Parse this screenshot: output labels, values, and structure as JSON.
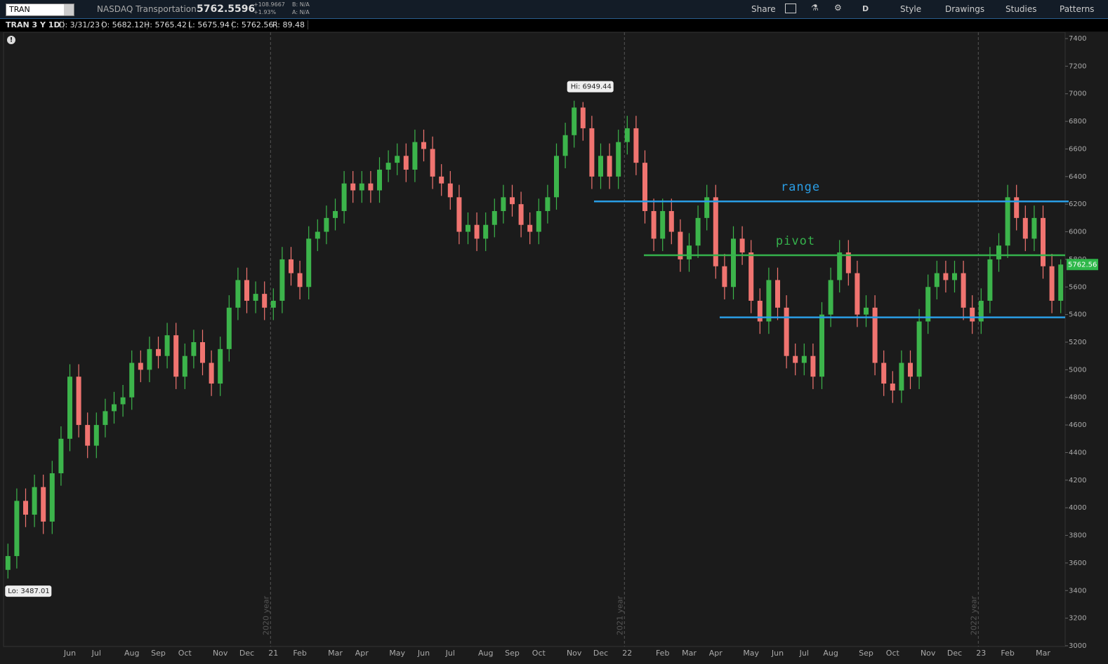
{
  "toolbar": {
    "symbol": "TRAN",
    "name": "NASDAQ Transportation",
    "last": "5762.5596",
    "change": "+108.9667",
    "change_pct": "+1.93%",
    "bid": "B: N/A",
    "ask": "A: N/A",
    "buttons": [
      "Share",
      "D",
      "Style",
      "Drawings",
      "Studies",
      "Patterns"
    ]
  },
  "info_bar": [
    "TRAN 3 Y 1D",
    "D: 3/31/23",
    "O: 5682.12",
    "H: 5765.42",
    "L: 5675.94",
    "C: 5762.56",
    "R: 89.48"
  ],
  "chart_data": {
    "type": "candlestick",
    "up_color": "#3cb44b",
    "down_color": "#f07470",
    "categories": [
      null,
      null,
      null,
      null,
      null,
      null,
      null,
      "Jun",
      null,
      null,
      "Jul",
      null,
      null,
      null,
      "Aug",
      null,
      null,
      "Sep",
      null,
      null,
      "Oct",
      null,
      null,
      null,
      "Nov",
      null,
      null,
      "Dec",
      null,
      null,
      "21",
      null,
      null,
      "Feb",
      null,
      null,
      null,
      "Mar",
      null,
      null,
      "Apr",
      null,
      null,
      null,
      "May",
      null,
      null,
      "Jun",
      null,
      null,
      "Jul",
      null,
      null,
      null,
      "Aug",
      null,
      null,
      "Sep",
      null,
      null,
      "Oct",
      null,
      null,
      null,
      "Nov",
      null,
      null,
      "Dec",
      null,
      null,
      "22",
      null,
      null,
      null,
      "Feb",
      null,
      null,
      "Mar",
      null,
      null,
      "Apr",
      null,
      null,
      null,
      "May",
      null,
      null,
      "Jun",
      null,
      null,
      "Jul",
      null,
      null,
      "Aug",
      null,
      null,
      null,
      "Sep",
      null,
      null,
      "Oct",
      null,
      null,
      null,
      "Nov",
      null,
      null,
      "Dec",
      null,
      null,
      "23",
      null,
      null,
      "Feb",
      null,
      null,
      null,
      "Mar",
      null,
      null
    ],
    "open": [
      3550,
      3650,
      4050,
      3950,
      4150,
      3900,
      4250,
      4500,
      4950,
      4600,
      4450,
      4600,
      4700,
      4750,
      4800,
      5050,
      5000,
      5150,
      5100,
      5250,
      4950,
      5100,
      5200,
      5050,
      4900,
      5150,
      5450,
      5650,
      5500,
      5550,
      5450,
      5500,
      5800,
      5700,
      5600,
      5950,
      6000,
      6100,
      6150,
      6350,
      6300,
      6350,
      6300,
      6450,
      6500,
      6550,
      6450,
      6650,
      6600,
      6400,
      6350,
      6250,
      6000,
      6050,
      5950,
      6050,
      6150,
      6250,
      6200,
      6050,
      6000,
      6150,
      6250,
      6550,
      6700,
      6900,
      6750,
      6400,
      6550,
      6400,
      6650,
      6750,
      6500,
      6150,
      5950,
      6150,
      6000,
      5800,
      5900,
      6100,
      6250,
      5750,
      5600,
      5950,
      5850,
      5500,
      5350,
      5650,
      5450,
      5100,
      5050,
      5100,
      4950,
      5400,
      5650,
      5850,
      5700,
      5400,
      5450,
      5050,
      4900,
      4850,
      5050,
      4950,
      5350,
      5600,
      5700,
      5650,
      5700,
      5450,
      5350,
      5500,
      5800,
      5900,
      6250,
      6100,
      5950,
      6100,
      5750,
      5500
    ],
    "high": [
      3740,
      4140,
      4140,
      4240,
      4240,
      4340,
      4590,
      5040,
      5040,
      4690,
      4690,
      4790,
      4840,
      4890,
      5140,
      5140,
      5240,
      5240,
      5340,
      5340,
      5190,
      5290,
      5290,
      5140,
      5240,
      5540,
      5740,
      5740,
      5640,
      5640,
      5590,
      5890,
      5890,
      5790,
      6040,
      6090,
      6190,
      6240,
      6440,
      6440,
      6440,
      6440,
      6540,
      6590,
      6640,
      6640,
      6740,
      6740,
      6690,
      6490,
      6440,
      6340,
      6140,
      6140,
      6140,
      6240,
      6340,
      6340,
      6290,
      6140,
      6240,
      6340,
      6640,
      6790,
      6949.44,
      6940,
      6840,
      6640,
      6640,
      6740,
      6840,
      6840,
      6590,
      6240,
      6240,
      6240,
      6090,
      5990,
      6190,
      6340,
      6340,
      5840,
      6040,
      6040,
      5940,
      5590,
      5740,
      5740,
      5540,
      5190,
      5190,
      5190,
      5490,
      5740,
      5940,
      5940,
      5790,
      5540,
      5540,
      5140,
      4990,
      5140,
      5140,
      5440,
      5690,
      5790,
      5790,
      5790,
      5790,
      5540,
      5590,
      5890,
      5990,
      6340,
      6340,
      6190,
      6190,
      6190,
      5840,
      5800
    ],
    "low": [
      3487.01,
      3560,
      3860,
      3860,
      3810,
      3810,
      4160,
      4410,
      4510,
      4360,
      4360,
      4510,
      4610,
      4660,
      4710,
      4910,
      4910,
      5010,
      5010,
      4860,
      4860,
      5010,
      4960,
      4810,
      4810,
      5060,
      5360,
      5410,
      5410,
      5360,
      5360,
      5410,
      5610,
      5510,
      5510,
      5860,
      5910,
      6010,
      6060,
      6210,
      6210,
      6210,
      6210,
      6360,
      6410,
      6360,
      6360,
      6510,
      6310,
      6260,
      6160,
      5910,
      5910,
      5860,
      5860,
      5960,
      6060,
      6110,
      5960,
      5910,
      5910,
      6060,
      6160,
      6460,
      6610,
      6660,
      6310,
      6310,
      6310,
      6310,
      6560,
      6410,
      6060,
      5860,
      5860,
      5910,
      5710,
      5710,
      5810,
      6010,
      5660,
      5510,
      5510,
      5760,
      5410,
      5260,
      5260,
      5360,
      5010,
      4960,
      4960,
      4860,
      4860,
      5310,
      5560,
      5610,
      5310,
      5310,
      4960,
      4810,
      4760,
      4760,
      4860,
      4860,
      5260,
      5510,
      5560,
      5560,
      5360,
      5260,
      5260,
      5410,
      5710,
      5810,
      6010,
      5860,
      5860,
      5660,
      5410,
      5410
    ],
    "close": [
      3650,
      4050,
      3950,
      4150,
      3900,
      4250,
      4500,
      4950,
      4600,
      4450,
      4600,
      4700,
      4750,
      4800,
      5050,
      5000,
      5150,
      5100,
      5250,
      4950,
      5100,
      5200,
      5050,
      4900,
      5150,
      5450,
      5650,
      5500,
      5550,
      5450,
      5500,
      5800,
      5700,
      5600,
      5950,
      6000,
      6100,
      6150,
      6350,
      6300,
      6350,
      6300,
      6450,
      6500,
      6550,
      6450,
      6650,
      6600,
      6400,
      6350,
      6250,
      6000,
      6050,
      5950,
      6050,
      6150,
      6250,
      6200,
      6050,
      6000,
      6150,
      6250,
      6550,
      6700,
      6900,
      6750,
      6400,
      6550,
      6400,
      6650,
      6750,
      6500,
      6150,
      5950,
      6150,
      6000,
      5800,
      5900,
      6100,
      6250,
      5750,
      5600,
      5950,
      5850,
      5500,
      5350,
      5650,
      5450,
      5100,
      5050,
      5100,
      4950,
      5400,
      5650,
      5850,
      5700,
      5400,
      5450,
      5050,
      4900,
      4850,
      5050,
      4950,
      5350,
      5600,
      5700,
      5650,
      5700,
      5450,
      5350,
      5500,
      5800,
      5900,
      6250,
      6100,
      5950,
      6100,
      5750,
      5500,
      5762.56
    ],
    "ylim": [
      3000,
      7400
    ],
    "yticks": [
      3000,
      3200,
      3400,
      3600,
      3800,
      4000,
      4200,
      4400,
      4600,
      4800,
      5000,
      5200,
      5400,
      5600,
      5800,
      6000,
      6200,
      6400,
      6600,
      6800,
      7000,
      7200,
      7400
    ],
    "year_labels": [
      "2020 year",
      "2021 year",
      "2022 year"
    ],
    "hi_label": "Hi: 6949.44",
    "lo_label": "Lo: 3487.01",
    "levels": [
      {
        "label": "range",
        "value": 6220,
        "color": "#2a9ee6"
      },
      {
        "label": "pivot",
        "value": 5830,
        "color": "#35b24c"
      },
      {
        "value": 5380,
        "color": "#2a9ee6"
      }
    ]
  }
}
